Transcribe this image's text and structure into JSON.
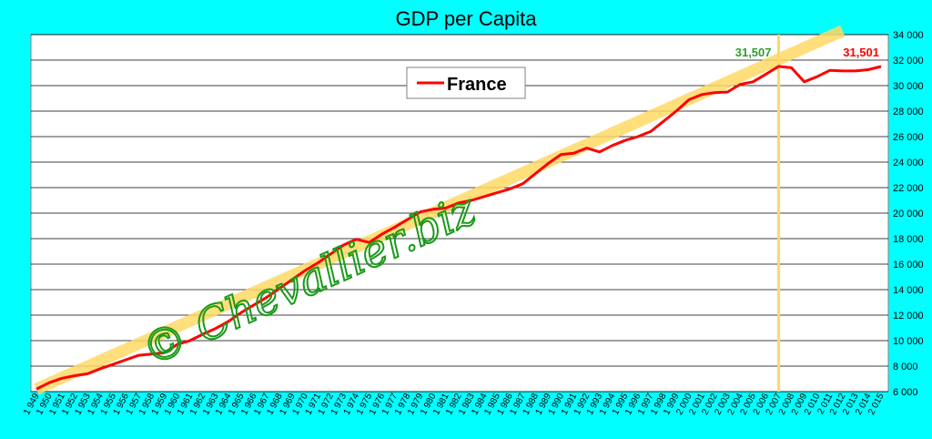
{
  "chart_data": {
    "type": "line",
    "title": "GDP per Capita",
    "ylim": [
      6000,
      34000
    ],
    "y_ticks": [
      6000,
      8000,
      10000,
      12000,
      14000,
      16000,
      18000,
      20000,
      22000,
      24000,
      26000,
      28000,
      30000,
      32000,
      34000
    ],
    "y_tick_labels": [
      "6 000",
      "8 000",
      "10 000",
      "12 000",
      "14 000",
      "16 000",
      "18 000",
      "20 000",
      "22 000",
      "24 000",
      "26 000",
      "28 000",
      "30 000",
      "32 000",
      "34 000"
    ],
    "x_tick_labels": [
      "1 949",
      "1 950",
      "1 951",
      "1 952",
      "1 953",
      "1 954",
      "1 955",
      "1 956",
      "1 957",
      "1 958",
      "1 959",
      "1 960",
      "1 961",
      "1 962",
      "1 963",
      "1 964",
      "1 965",
      "1 966",
      "1 967",
      "1 968",
      "1 969",
      "1 970",
      "1 971",
      "1 972",
      "1 973",
      "1 974",
      "1 975",
      "1 976",
      "1 977",
      "1 978",
      "1 979",
      "1 980",
      "1 981",
      "1 982",
      "1 983",
      "1 984",
      "1 985",
      "1 986",
      "1 987",
      "1 988",
      "1 989",
      "1 990",
      "1 991",
      "1 992",
      "1 993",
      "1 994",
      "1 995",
      "1 996",
      "1 997",
      "1 998",
      "1 999",
      "2 000",
      "2 001",
      "2 002",
      "2 003",
      "2 004",
      "2 005",
      "2 006",
      "2 007",
      "2 008",
      "2 009",
      "2 010",
      "2 011",
      "2 012",
      "2 013",
      "2 014",
      "2 015"
    ],
    "grid": true,
    "legend_position": "top-center",
    "series": [
      {
        "name": "France",
        "color": "#FF0000",
        "x": [
          1949,
          1950,
          1951,
          1952,
          1953,
          1954,
          1955,
          1956,
          1957,
          1958,
          1959,
          1960,
          1961,
          1962,
          1963,
          1964,
          1965,
          1966,
          1967,
          1968,
          1969,
          1970,
          1971,
          1972,
          1973,
          1974,
          1975,
          1976,
          1977,
          1978,
          1979,
          1980,
          1981,
          1982,
          1983,
          1984,
          1985,
          1986,
          1987,
          1988,
          1989,
          1990,
          1991,
          1992,
          1993,
          1994,
          1995,
          1996,
          1997,
          1998,
          1999,
          2000,
          2001,
          2002,
          2003,
          2004,
          2005,
          2006,
          2007,
          2008,
          2009,
          2010,
          2011,
          2012,
          2013,
          2014,
          2015
        ],
        "values": [
          6200,
          6700,
          7050,
          7250,
          7400,
          7800,
          8150,
          8500,
          8850,
          8950,
          9050,
          9700,
          10000,
          10500,
          10950,
          11500,
          12200,
          12800,
          13400,
          14100,
          14800,
          15500,
          16100,
          16800,
          17500,
          17950,
          17700,
          18350,
          18900,
          19500,
          20100,
          20300,
          20400,
          20800,
          21000,
          21300,
          21600,
          21900,
          22300,
          23100,
          23900,
          24600,
          24700,
          25100,
          24800,
          25300,
          25700,
          26000,
          26400,
          27200,
          28000,
          28900,
          29300,
          29450,
          29500,
          30100,
          30300,
          30900,
          31507,
          31400,
          30300,
          30700,
          31200,
          31150,
          31150,
          31250,
          31501
        ]
      }
    ],
    "trend_line": {
      "from_year": 1949,
      "from_value": 6200,
      "to_year": 2012,
      "to_value": 34300,
      "color": "#FFD966"
    },
    "reference_line": {
      "year": 2007,
      "color": "#FFD966"
    },
    "annotations": [
      {
        "text": "31,507",
        "year": 2007,
        "value": 31507,
        "color": "#2E9E2E"
      },
      {
        "text": "31,501",
        "year": 2015,
        "value": 31501,
        "color": "#FF0000"
      }
    ]
  },
  "watermark": {
    "text": "© Chevallier.biz",
    "color": "#1a9a1a"
  }
}
